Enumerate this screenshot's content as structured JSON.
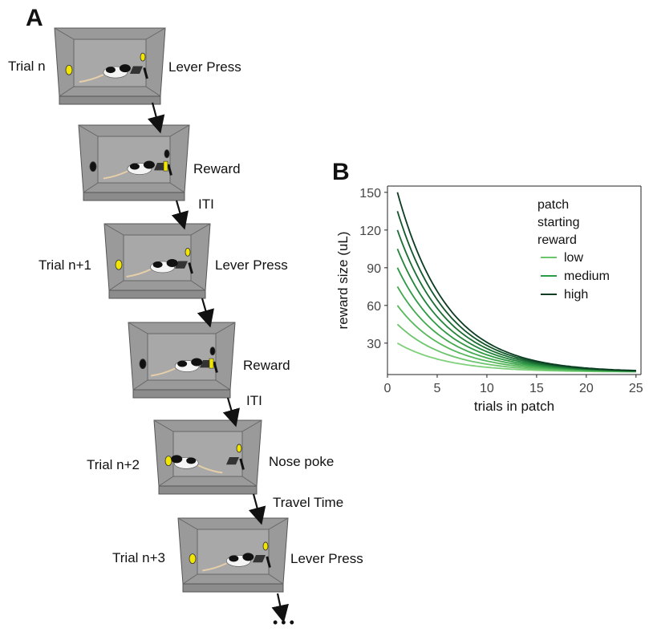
{
  "panel_a": {
    "letter": "A",
    "steps": [
      {
        "label_left": "Trial n",
        "label_right": "Lever Press",
        "transition": ""
      },
      {
        "label_left": "",
        "label_right": "Reward",
        "transition": ""
      },
      {
        "label_left": "Trial n+1",
        "label_right": "Lever Press",
        "transition": "ITI"
      },
      {
        "label_left": "",
        "label_right": "Reward",
        "transition": ""
      },
      {
        "label_left": "Trial n+2",
        "label_right": "Nose poke",
        "transition": "ITI"
      },
      {
        "label_left": "Trial n+3",
        "label_right": "Lever Press",
        "transition": "Travel Time"
      }
    ],
    "ellipsis": "•••"
  },
  "panel_b": {
    "letter": "B"
  },
  "chart_data": {
    "type": "line",
    "xlabel": "trials in patch",
    "ylabel": "reward size (uL)",
    "xlim": [
      0,
      25.5
    ],
    "ylim": [
      5,
      155
    ],
    "xticks": [
      0,
      5,
      10,
      15,
      20,
      25
    ],
    "yticks": [
      30,
      60,
      90,
      120,
      150
    ],
    "grid": false,
    "legend": {
      "title_lines": [
        "patch",
        "starting",
        "reward"
      ],
      "placement": "top-right",
      "entries": [
        {
          "label": "low",
          "color": "#6cc46c"
        },
        {
          "label": "medium",
          "color": "#2a9a48"
        },
        {
          "label": "high",
          "color": "#0b3d22"
        }
      ]
    },
    "decay_per_trial": 0.92,
    "x_start": 1,
    "x_end": 25,
    "curve_floor": 7,
    "series_start_values": [
      30,
      45,
      60,
      75,
      90,
      105,
      120,
      135,
      150
    ],
    "series_colors": [
      "#7ed07a",
      "#6cc46c",
      "#57b85c",
      "#43aa50",
      "#2f9a45",
      "#24843c",
      "#1a6e33",
      "#12572a",
      "#0b3d22"
    ]
  }
}
